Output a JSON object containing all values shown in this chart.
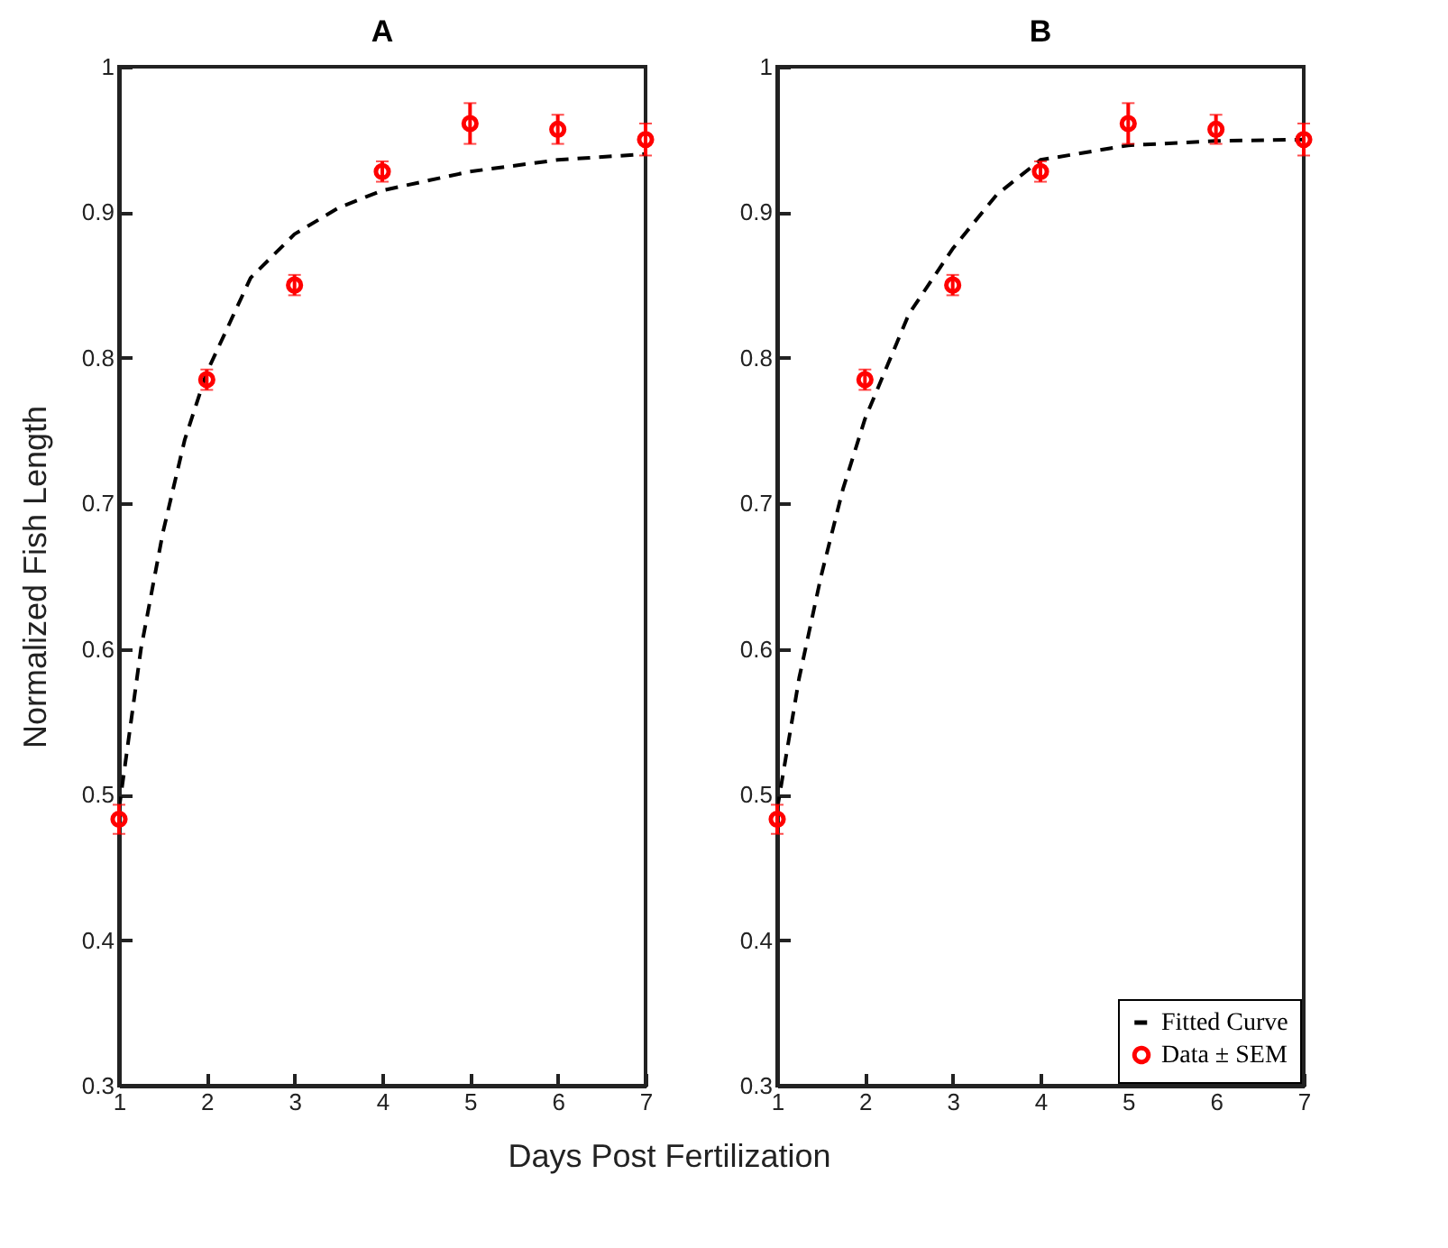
{
  "chart_data": [
    {
      "type": "line",
      "title": "A",
      "xlabel": "Days Post Fertilization",
      "ylabel": "Normalized Fish Length",
      "xlim": [
        1,
        7
      ],
      "ylim": [
        0.3,
        1
      ],
      "xticks": [
        1,
        2,
        3,
        4,
        5,
        6,
        7
      ],
      "yticks": [
        0.3,
        0.4,
        0.5,
        0.6,
        0.7,
        0.8,
        0.9,
        1
      ],
      "grid": false,
      "legend": false,
      "series": [
        {
          "line_style": "dashed",
          "marker": "none",
          "color": "#000000",
          "x": [
            1,
            1.25,
            1.5,
            1.75,
            2,
            2.5,
            3,
            3.5,
            4,
            5,
            6,
            7
          ],
          "values": [
            0.49,
            0.6,
            0.68,
            0.744,
            0.79,
            0.855,
            0.885,
            0.903,
            0.915,
            0.928,
            0.936,
            0.94
          ]
        },
        {
          "type": "scatter",
          "marker": "circle",
          "color": "#ff0000",
          "x": [
            1,
            2,
            3,
            4,
            5,
            6,
            7
          ],
          "values": [
            0.483,
            0.785,
            0.85,
            0.928,
            0.961,
            0.957,
            0.95
          ],
          "errors": [
            0.01,
            0.007,
            0.007,
            0.007,
            0.014,
            0.01,
            0.011
          ]
        }
      ]
    },
    {
      "type": "line",
      "title": "B",
      "xlim": [
        1,
        7
      ],
      "ylim": [
        0.3,
        1
      ],
      "xticks": [
        1,
        2,
        3,
        4,
        5,
        6,
        7
      ],
      "yticks": [
        0.3,
        0.4,
        0.5,
        0.6,
        0.7,
        0.8,
        0.9,
        1
      ],
      "grid": false,
      "legend": "bottom right",
      "series": [
        {
          "name": "Fitted Curve",
          "line_style": "dashed",
          "marker": "none",
          "color": "#000000",
          "x": [
            1,
            1.25,
            1.5,
            1.75,
            2,
            2.5,
            3,
            3.5,
            4,
            5,
            6,
            7
          ],
          "values": [
            0.49,
            0.58,
            0.65,
            0.71,
            0.758,
            0.83,
            0.875,
            0.912,
            0.936,
            0.946,
            0.949,
            0.95
          ]
        },
        {
          "name": "Data ± SEM",
          "type": "scatter",
          "marker": "circle",
          "color": "#ff0000",
          "x": [
            1,
            2,
            3,
            4,
            5,
            6,
            7
          ],
          "values": [
            0.483,
            0.785,
            0.85,
            0.928,
            0.961,
            0.957,
            0.95
          ],
          "errors": [
            0.01,
            0.007,
            0.007,
            0.007,
            0.014,
            0.01,
            0.011
          ]
        }
      ]
    }
  ]
}
